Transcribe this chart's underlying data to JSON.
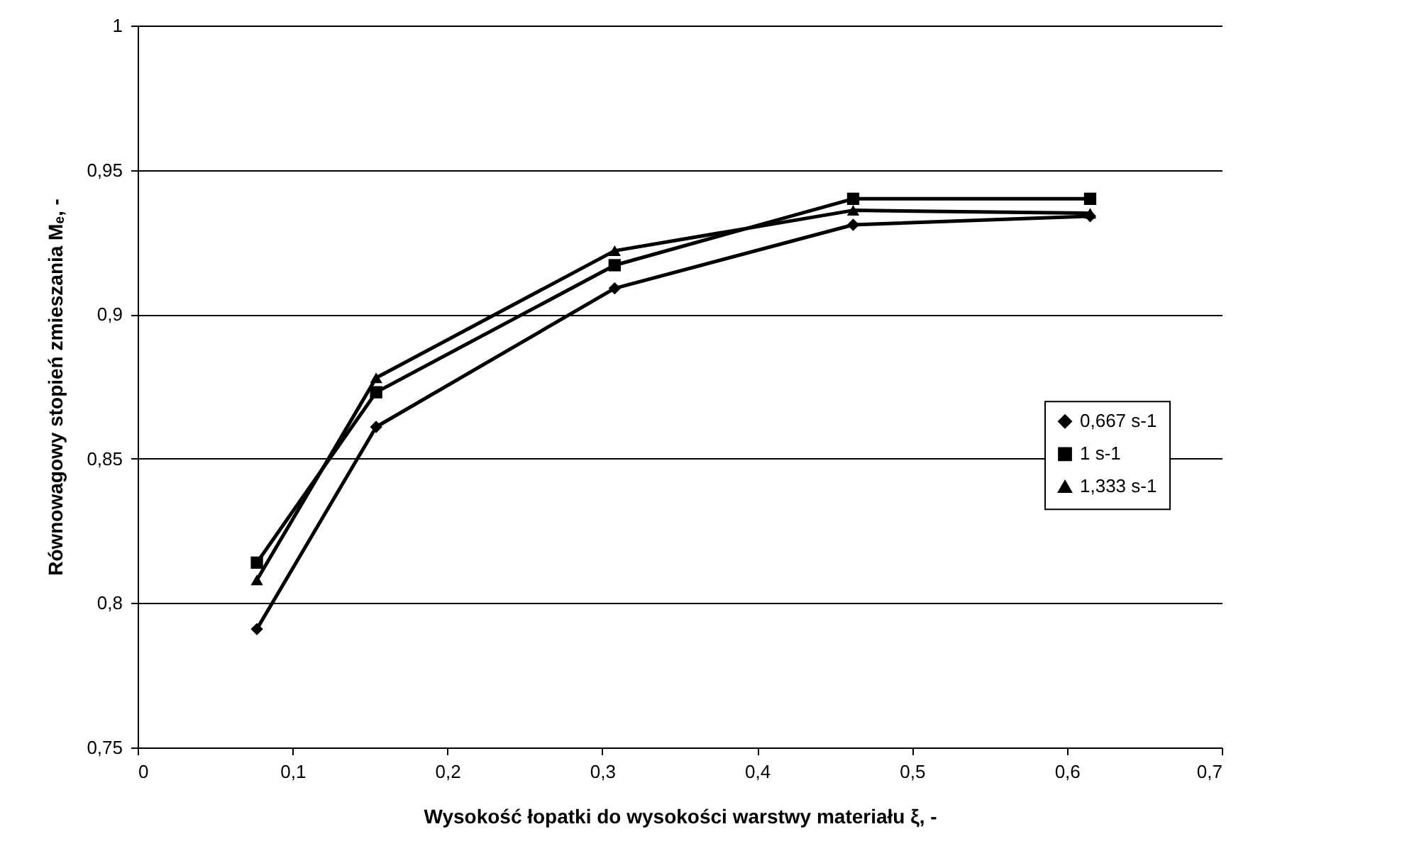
{
  "chart_data": {
    "type": "line",
    "xlabel": "Wysokość łopatki do wysokości warstwy materiału  ξ,  -",
    "ylabel": "Równowagowy stopień zmieszania  Mₑ,  -",
    "x": [
      0.077,
      0.154,
      0.308,
      0.462,
      0.615
    ],
    "series": [
      {
        "name": "0,667 s-1",
        "color": "#000000",
        "marker": "diamond",
        "values": [
          0.791,
          0.861,
          0.909,
          0.931,
          0.934
        ]
      },
      {
        "name": "1 s-1",
        "color": "#000000",
        "marker": "square",
        "values": [
          0.814,
          0.873,
          0.917,
          0.94,
          0.94
        ]
      },
      {
        "name": "1,333 s-1",
        "color": "#000000",
        "marker": "triangle",
        "values": [
          0.808,
          0.878,
          0.922,
          0.936,
          0.935
        ]
      }
    ],
    "xlim": [
      0,
      0.7
    ],
    "xticks": [
      0,
      {
        "value": 0.1,
        "label": "0,1"
      },
      {
        "value": 0.2,
        "label": "0,2"
      },
      {
        "value": 0.3,
        "label": "0,3"
      },
      {
        "value": 0.4,
        "label": "0,4"
      },
      {
        "value": 0.5,
        "label": "0,5"
      },
      {
        "value": 0.6,
        "label": "0,6"
      },
      {
        "value": 0.7,
        "label": "0,7"
      }
    ],
    "ylim": [
      0.75,
      1
    ],
    "yticks": [
      {
        "value": 0.75,
        "label": "0,75"
      },
      {
        "value": 0.8,
        "label": "0,8"
      },
      {
        "value": 0.85,
        "label": "0,85"
      },
      {
        "value": 0.9,
        "label": "0,9"
      },
      {
        "value": 0.95,
        "label": "0,95"
      },
      1
    ],
    "grid": "y",
    "legend": "right",
    "line_style": "solid"
  }
}
